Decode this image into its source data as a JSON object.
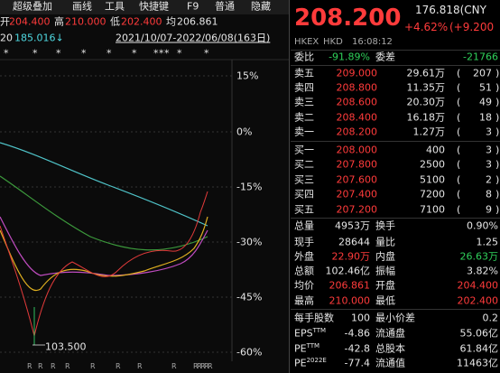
{
  "toolbar": {
    "items": [
      "超级叠加",
      "画线",
      "工具",
      "快捷键",
      "F9",
      "普通",
      "隐藏"
    ]
  },
  "price_bar": {
    "open_label": "开",
    "open": "204.400",
    "high_label": "高",
    "high": "210.000",
    "low_label": "低",
    "low": "202.400",
    "avg_label": "均",
    "avg": "206.861"
  },
  "indicator": {
    "label": "20",
    "value": "185.016↓"
  },
  "date_range": "2021/10/07-2022/06/08(163日)",
  "star": "*",
  "axis_labels": [
    "15%",
    "0%",
    "-15%",
    "-30%",
    "-45%",
    "-60%"
  ],
  "low_marker": "103.500",
  "bottom_marker": "R",
  "quote": {
    "price": "208.200",
    "ref": "176.818(CNY",
    "change": "+4.62%",
    "change_abs": "(+9.200",
    "exchange": "HKEX",
    "currency": "HKD",
    "time": "16:08:12"
  },
  "ratio": {
    "label": "委比",
    "value": "-91.89%",
    "diff_label": "委差",
    "diff": "-21766"
  },
  "asks": [
    [
      "卖五",
      "209.000",
      "29.61万",
      "207"
    ],
    [
      "卖四",
      "208.800",
      "11.35万",
      "51"
    ],
    [
      "卖三",
      "208.600",
      "20.30万",
      "49"
    ],
    [
      "卖二",
      "208.400",
      "16.18万",
      "18"
    ],
    [
      "卖一",
      "208.200",
      "1.27万",
      "3"
    ]
  ],
  "bids": [
    [
      "买一",
      "208.000",
      "400",
      "3"
    ],
    [
      "买二",
      "207.800",
      "2500",
      "3"
    ],
    [
      "买三",
      "207.600",
      "5100",
      "2"
    ],
    [
      "买四",
      "207.400",
      "7200",
      "8"
    ],
    [
      "买五",
      "207.200",
      "7100",
      "9"
    ]
  ],
  "paren_open": "(",
  "paren_close": ")",
  "stats": [
    {
      "l1": "总量",
      "v1": "4953万",
      "l2": "换手",
      "v2": "0.90%"
    },
    {
      "l1": "现手",
      "v1": "28644",
      "l2": "量比",
      "v2": "1.25"
    },
    {
      "l1": "外盘",
      "v1": "22.90万",
      "l2": "内盘",
      "v2": "26.63万"
    },
    {
      "l1": "总额",
      "v1": "102.46亿",
      "l2": "振幅",
      "v2": "3.82%"
    },
    {
      "l1": "均价",
      "v1": "206.861",
      "l2": "开盘",
      "v2": "204.400"
    },
    {
      "l1": "最高",
      "v1": "210.000",
      "l2": "最低",
      "v2": "202.400"
    },
    {
      "l1": "每手股数",
      "v1": "100",
      "l2": "最小价差",
      "v2": "0.2"
    },
    {
      "l1": "EPS",
      "sup": "TTM",
      "v1": "-4.86",
      "l2": "流通盘",
      "v2": "55.06亿"
    },
    {
      "l1": "PE",
      "sup": "TTM",
      "v1": "-42.8",
      "l2": "总股本",
      "v2": "61.84亿"
    },
    {
      "l1": "PE",
      "sup": "2022E",
      "v1": "-77.4",
      "l2": "流通值",
      "v2": "11463亿"
    }
  ]
}
